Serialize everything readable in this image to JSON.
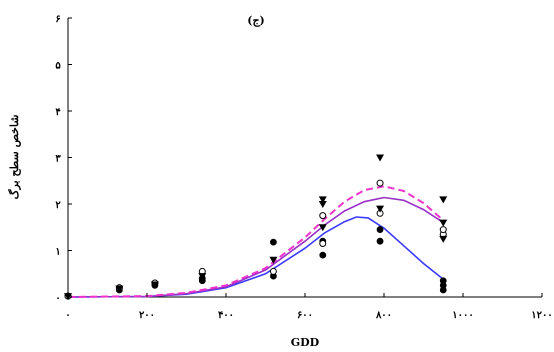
{
  "chart_data": {
    "type": "scatter",
    "title": "(ج)",
    "xlabel": "GDD",
    "ylabel": "شاخص سطح برگ",
    "xlim": [
      0,
      1200
    ],
    "ylim": [
      0,
      6
    ],
    "x_ticks": [
      {
        "value": 0,
        "label": "۰"
      },
      {
        "value": 200,
        "label": "۲۰۰"
      },
      {
        "value": 400,
        "label": "۴۰۰"
      },
      {
        "value": 600,
        "label": "۶۰۰"
      },
      {
        "value": 800,
        "label": "۸۰۰"
      },
      {
        "value": 1000,
        "label": "۱۰۰۰"
      },
      {
        "value": 1200,
        "label": "۱۲۰۰"
      }
    ],
    "y_ticks": [
      {
        "value": 0,
        "label": "۰"
      },
      {
        "value": 1,
        "label": "۱"
      },
      {
        "value": 2,
        "label": "۲"
      },
      {
        "value": 3,
        "label": "۳"
      },
      {
        "value": 4,
        "label": "۴"
      },
      {
        "value": 5,
        "label": "۵"
      },
      {
        "value": 6,
        "label": "۶"
      }
    ],
    "grid": false,
    "legend": "none",
    "series": [
      {
        "marker": "filled-circle",
        "color": "#000000",
        "points": [
          [
            0,
            0.02
          ],
          [
            130,
            0.15
          ],
          [
            130,
            0.2
          ],
          [
            220,
            0.25
          ],
          [
            220,
            0.3
          ],
          [
            340,
            0.35
          ],
          [
            340,
            0.4
          ],
          [
            520,
            0.45
          ],
          [
            520,
            1.18
          ],
          [
            645,
            0.9
          ],
          [
            645,
            1.2
          ],
          [
            790,
            1.2
          ],
          [
            790,
            1.45
          ],
          [
            950,
            0.15
          ],
          [
            950,
            0.25
          ],
          [
            950,
            0.35
          ]
        ]
      },
      {
        "marker": "open-circle",
        "color": "#000000",
        "points": [
          [
            0,
            0.02
          ],
          [
            130,
            0.2
          ],
          [
            220,
            0.3
          ],
          [
            340,
            0.55
          ],
          [
            520,
            0.55
          ],
          [
            645,
            1.15
          ],
          [
            645,
            1.75
          ],
          [
            790,
            1.8
          ],
          [
            790,
            2.45
          ],
          [
            950,
            1.35
          ],
          [
            950,
            1.45
          ]
        ]
      },
      {
        "marker": "filled-triangle-down",
        "color": "#000000",
        "points": [
          [
            0,
            0.02
          ],
          [
            130,
            0.18
          ],
          [
            220,
            0.27
          ],
          [
            340,
            0.45
          ],
          [
            520,
            0.8
          ],
          [
            645,
            1.5
          ],
          [
            645,
            2.0
          ],
          [
            645,
            2.1
          ],
          [
            790,
            1.9
          ],
          [
            790,
            3.0
          ],
          [
            950,
            1.25
          ],
          [
            950,
            1.6
          ],
          [
            950,
            2.1
          ]
        ]
      }
    ],
    "curves": [
      {
        "color": "#3a3aff",
        "dash": "solid",
        "points": [
          [
            0,
            0
          ],
          [
            200,
            0.01
          ],
          [
            300,
            0.06
          ],
          [
            400,
            0.2
          ],
          [
            500,
            0.5
          ],
          [
            600,
            1.05
          ],
          [
            650,
            1.38
          ],
          [
            700,
            1.62
          ],
          [
            730,
            1.72
          ],
          [
            760,
            1.7
          ],
          [
            800,
            1.48
          ],
          [
            850,
            1.1
          ],
          [
            900,
            0.72
          ],
          [
            950,
            0.38
          ]
        ]
      },
      {
        "color": "#9a30c8",
        "dash": "solid",
        "points": [
          [
            0,
            0
          ],
          [
            200,
            0.01
          ],
          [
            300,
            0.07
          ],
          [
            400,
            0.22
          ],
          [
            500,
            0.58
          ],
          [
            600,
            1.2
          ],
          [
            650,
            1.55
          ],
          [
            700,
            1.85
          ],
          [
            750,
            2.05
          ],
          [
            800,
            2.14
          ],
          [
            850,
            2.08
          ],
          [
            900,
            1.88
          ],
          [
            950,
            1.6
          ]
        ]
      },
      {
        "color": "#ee33cc",
        "dash": "dashed",
        "points": [
          [
            0,
            0
          ],
          [
            200,
            0.02
          ],
          [
            300,
            0.09
          ],
          [
            400,
            0.25
          ],
          [
            500,
            0.62
          ],
          [
            600,
            1.28
          ],
          [
            650,
            1.68
          ],
          [
            700,
            2.05
          ],
          [
            750,
            2.3
          ],
          [
            800,
            2.38
          ],
          [
            850,
            2.28
          ],
          [
            900,
            2.02
          ],
          [
            950,
            1.65
          ]
        ]
      }
    ]
  }
}
